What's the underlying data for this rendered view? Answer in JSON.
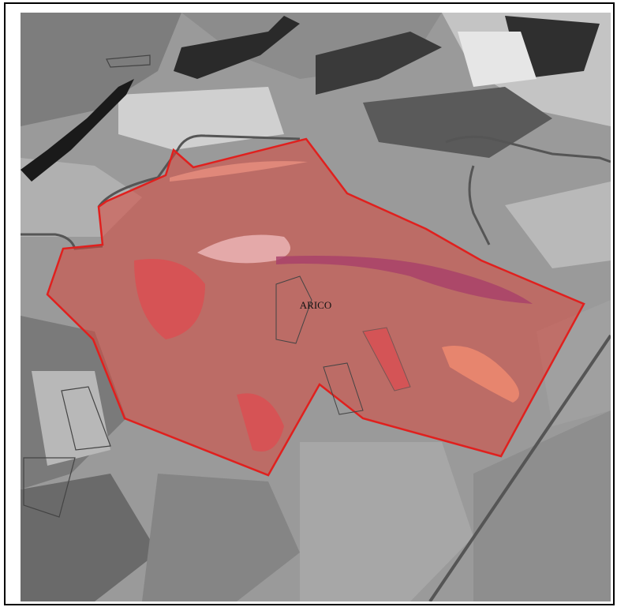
{
  "map": {
    "place_label": "ARICO"
  }
}
